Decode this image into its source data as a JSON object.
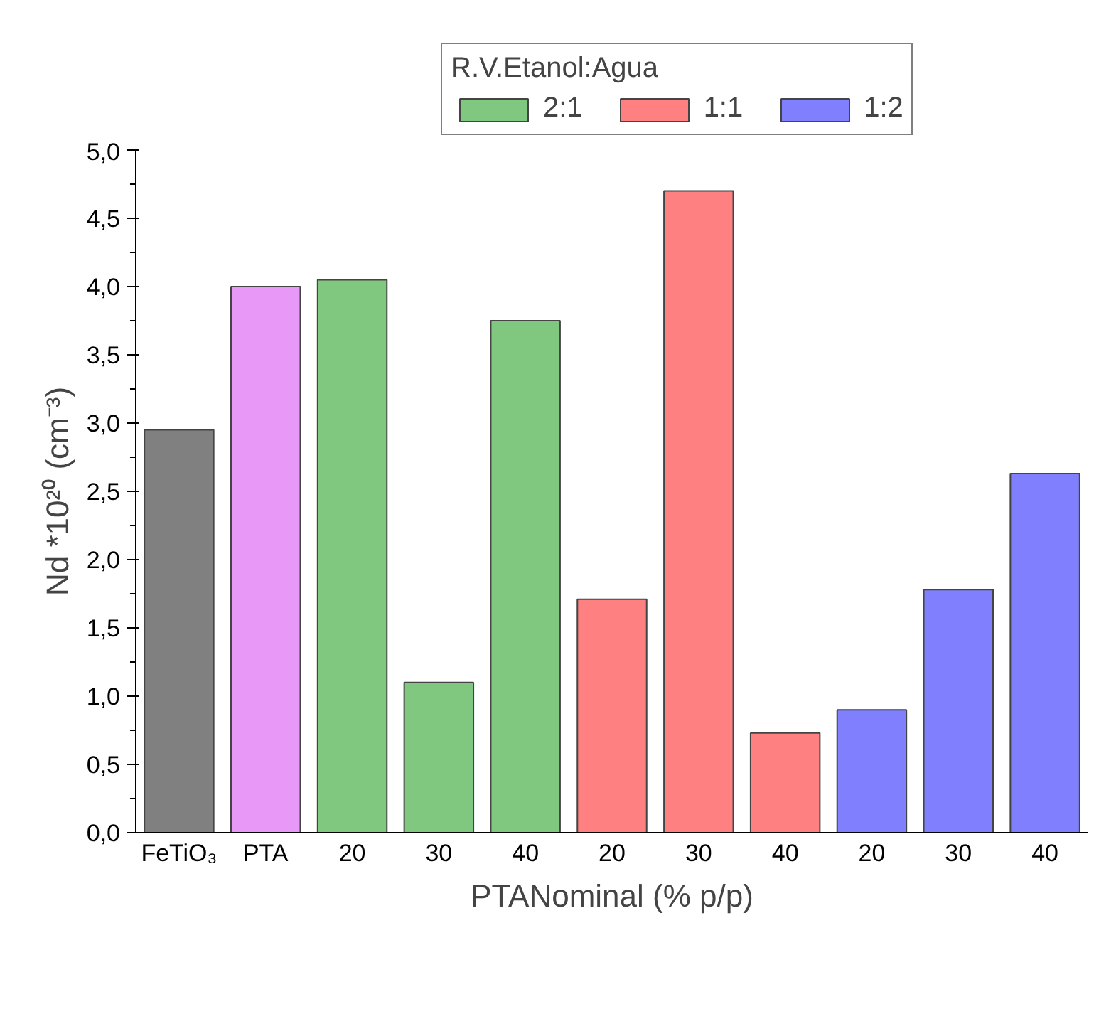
{
  "chart_data": {
    "type": "bar",
    "categories": [
      "FeTiO₃",
      "PTA",
      "20",
      "30",
      "40",
      "20",
      "30",
      "40",
      "20",
      "30",
      "40"
    ],
    "series": [
      {
        "color": "#808080",
        "values": [
          2.95,
          null,
          null,
          null,
          null,
          null,
          null,
          null,
          null,
          null,
          null
        ]
      },
      {
        "color": "#e899f8",
        "values": [
          null,
          4.0,
          null,
          null,
          null,
          null,
          null,
          null,
          null,
          null,
          null
        ]
      },
      {
        "name": "2:1",
        "color": "#80c880",
        "values": [
          null,
          null,
          4.05,
          1.1,
          3.75,
          null,
          null,
          null,
          null,
          null,
          null
        ]
      },
      {
        "name": "1:1",
        "color": "#fe8080",
        "values": [
          null,
          null,
          null,
          null,
          null,
          1.71,
          4.7,
          0.73,
          null,
          null,
          null
        ]
      },
      {
        "name": "1:2",
        "color": "#8080fe",
        "values": [
          null,
          null,
          null,
          null,
          null,
          null,
          null,
          null,
          0.9,
          1.78,
          2.63
        ]
      }
    ],
    "xlabel": "PTANominal (% p/p)",
    "ylabel": "Nd *10²⁰ (cm⁻³)",
    "legend_title": "R.V.Etanol:Agua",
    "ylim": [
      0,
      5
    ],
    "yticks": [
      {
        "value": 0,
        "label": "0,0"
      },
      {
        "value": 0.5,
        "label": "0,5"
      },
      {
        "value": 1,
        "label": "1,0"
      },
      {
        "value": 1.5,
        "label": "1,5"
      },
      {
        "value": 2,
        "label": "2,0"
      },
      {
        "value": 2.5,
        "label": "2,5"
      },
      {
        "value": 3,
        "label": "3,0"
      },
      {
        "value": 3.5,
        "label": "3,5"
      },
      {
        "value": 4,
        "label": "4,0"
      },
      {
        "value": 4.5,
        "label": "4,5"
      },
      {
        "value": 5,
        "label": "5,0"
      }
    ],
    "grid": false,
    "legend": "top right"
  }
}
